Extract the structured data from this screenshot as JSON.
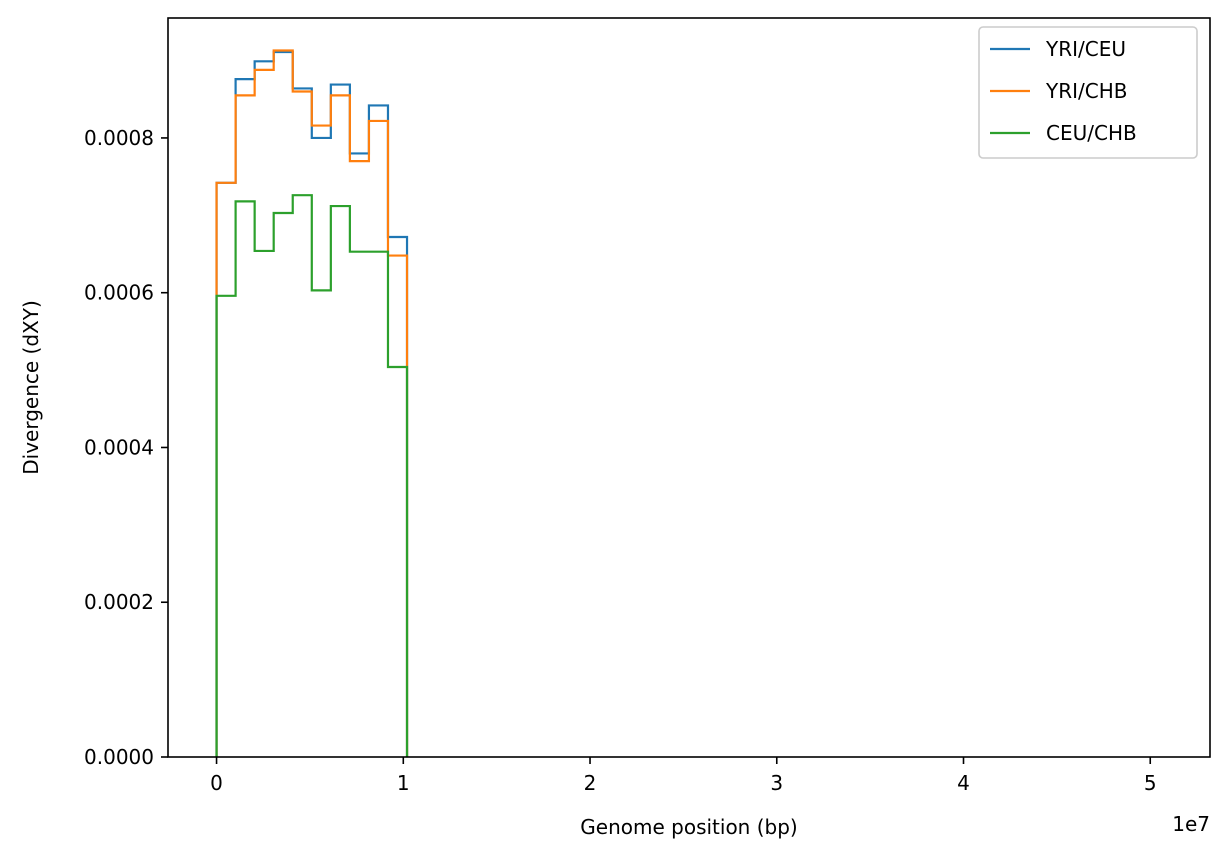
{
  "chart_data": {
    "type": "line",
    "style": "step",
    "xlabel": "Genome position (bp)",
    "ylabel": "Divergence (dXY)",
    "x_offset_label": "1e7",
    "xlim": [
      -2600000,
      53200000
    ],
    "ylim": [
      0,
      0.000955
    ],
    "x_ticks": [
      0,
      10000000,
      20000000,
      30000000,
      40000000,
      50000000
    ],
    "x_tick_labels": [
      "0",
      "1",
      "2",
      "3",
      "4",
      "5"
    ],
    "y_ticks": [
      0,
      0.0002,
      0.0004,
      0.0006,
      0.0008
    ],
    "y_tick_labels": [
      "0.0000",
      "0.0002",
      "0.0004",
      "0.0006",
      "0.0008"
    ],
    "grid": false,
    "legend_position": "top-right",
    "bin_edges": [
      0,
      1020000,
      2040000,
      3060000,
      4080000,
      5100000,
      6120000,
      7140000,
      8160000,
      9180000,
      10200000
    ],
    "series": [
      {
        "name": "YRI/CEU",
        "color": "#1f77b4",
        "values": [
          0.000742,
          0.000876,
          0.000899,
          0.000911,
          0.000864,
          0.0008,
          0.000869,
          0.00078,
          0.000842,
          0.000672
        ]
      },
      {
        "name": "YRI/CHB",
        "color": "#ff7f0e",
        "values": [
          0.000742,
          0.000855,
          0.000888,
          0.000913,
          0.00086,
          0.000816,
          0.000855,
          0.00077,
          0.000822,
          0.000648
        ]
      },
      {
        "name": "CEU/CHB",
        "color": "#2ca02c",
        "values": [
          0.000596,
          0.000718,
          0.000654,
          0.000703,
          0.000726,
          0.000603,
          0.000712,
          0.000653,
          0.000653,
          0.000504
        ]
      }
    ]
  }
}
